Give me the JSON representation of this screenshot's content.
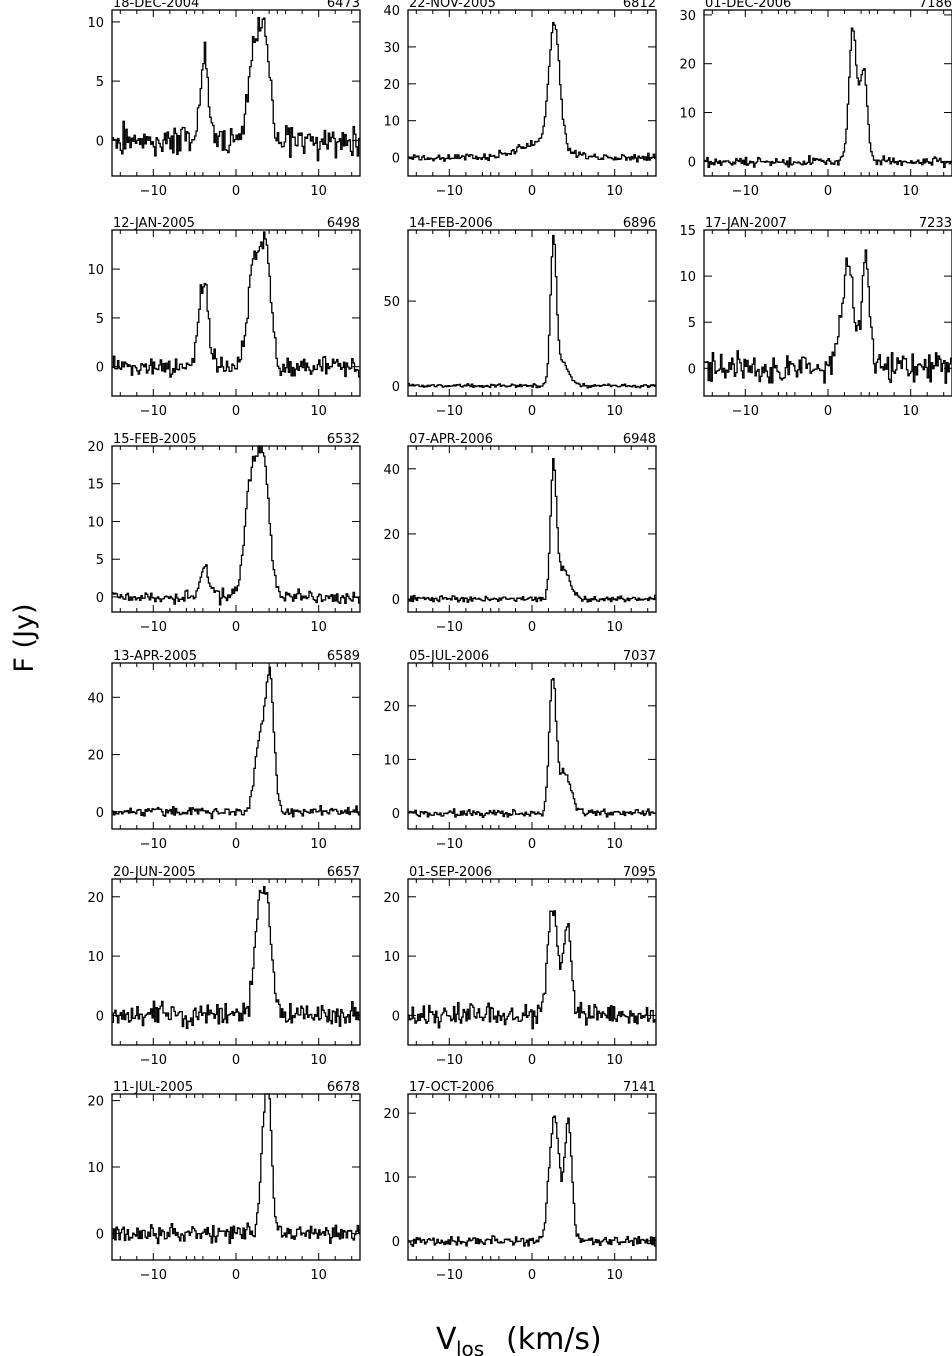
{
  "figure": {
    "ylabel": "F (Jy)",
    "xlabel_main": "V",
    "xlabel_sub": "los",
    "xlabel_unit": "(km/s)"
  },
  "chart_data": [
    {
      "type": "line",
      "date": "18-DEC-2004",
      "id": "6473",
      "xlim": [
        -15,
        15
      ],
      "ylim": [
        -3,
        11
      ],
      "xticks": [
        -10,
        0,
        10
      ],
      "yticks": [
        0,
        5,
        10
      ],
      "noise": 1.0,
      "components": [
        {
          "center": -3.8,
          "amp": 7.0,
          "width": 0.5
        },
        {
          "center": 2.3,
          "amp": 7.2,
          "width": 0.8
        },
        {
          "center": 3.5,
          "amp": 7.6,
          "width": 0.6
        }
      ],
      "peak": 10.7
    },
    {
      "type": "line",
      "date": "12-JAN-2005",
      "id": "6498",
      "xlim": [
        -15,
        15
      ],
      "ylim": [
        -3,
        14
      ],
      "xticks": [
        -10,
        0,
        10
      ],
      "yticks": [
        0,
        5,
        10
      ],
      "noise": 0.8,
      "components": [
        {
          "center": -3.9,
          "amp": 8.8,
          "width": 0.55
        },
        {
          "center": 2.2,
          "amp": 10.5,
          "width": 0.75
        },
        {
          "center": 3.6,
          "amp": 11.0,
          "width": 0.6
        }
      ],
      "peak": 13.5
    },
    {
      "type": "line",
      "date": "15-FEB-2005",
      "id": "6532",
      "xlim": [
        -15,
        15
      ],
      "ylim": [
        -2,
        20
      ],
      "xticks": [
        -10,
        0,
        10
      ],
      "yticks": [
        0,
        5,
        10,
        15,
        20
      ],
      "noise": 0.7,
      "components": [
        {
          "center": -3.8,
          "amp": 4.0,
          "width": 0.5
        },
        {
          "center": 1.9,
          "amp": 15.5,
          "width": 0.8
        },
        {
          "center": 3.4,
          "amp": 16.0,
          "width": 0.7
        }
      ],
      "peak": 19.0
    },
    {
      "type": "line",
      "date": "13-APR-2005",
      "id": "6589",
      "xlim": [
        -15,
        15
      ],
      "ylim": [
        -6,
        52
      ],
      "xticks": [
        -10,
        0,
        10
      ],
      "yticks": [
        0,
        20,
        40
      ],
      "noise": 1.4,
      "components": [
        {
          "center": 2.9,
          "amp": 25.0,
          "width": 0.6
        },
        {
          "center": 4.1,
          "amp": 46.0,
          "width": 0.5
        }
      ],
      "peak": 50.0
    },
    {
      "type": "line",
      "date": "20-JUN-2005",
      "id": "6657",
      "xlim": [
        -15,
        15
      ],
      "ylim": [
        -5,
        23
      ],
      "xticks": [
        -10,
        0,
        10
      ],
      "yticks": [
        0,
        10,
        20
      ],
      "noise": 1.5,
      "components": [
        {
          "center": 3.0,
          "amp": 19.5,
          "width": 0.7
        },
        {
          "center": 4.0,
          "amp": 10.0,
          "width": 0.5
        }
      ],
      "peak": 22.0
    },
    {
      "type": "line",
      "date": "11-JUL-2005",
      "id": "6678",
      "xlim": [
        -15,
        15
      ],
      "ylim": [
        -4,
        21
      ],
      "xticks": [
        -10,
        0,
        10
      ],
      "yticks": [
        0,
        10,
        20
      ],
      "noise": 1.0,
      "components": [
        {
          "center": 3.4,
          "amp": 14.0,
          "width": 0.45
        },
        {
          "center": 4.0,
          "amp": 16.0,
          "width": 0.4
        }
      ],
      "peak": 20.0
    },
    {
      "type": "line",
      "date": "22-NOV-2005",
      "id": "6812",
      "xlim": [
        -15,
        15
      ],
      "ylim": [
        -5,
        40
      ],
      "xticks": [
        -10,
        0,
        10
      ],
      "yticks": [
        0,
        10,
        20,
        30,
        40
      ],
      "noise": 0.8,
      "components": [
        {
          "center": 2.7,
          "amp": 33.0,
          "width": 0.65
        },
        {
          "center": 1.0,
          "amp": 4.0,
          "width": 2.5
        }
      ],
      "peak": 38.5
    },
    {
      "type": "line",
      "date": "14-FEB-2006",
      "id": "6896",
      "xlim": [
        -15,
        15
      ],
      "ylim": [
        -6,
        92
      ],
      "xticks": [
        -10,
        0,
        10
      ],
      "yticks": [
        0,
        50
      ],
      "noise": 0.8,
      "components": [
        {
          "center": 2.6,
          "amp": 82.0,
          "width": 0.35
        },
        {
          "center": 3.6,
          "amp": 14.0,
          "width": 0.8
        }
      ],
      "peak": 88.0
    },
    {
      "type": "line",
      "date": "07-APR-2006",
      "id": "6948",
      "xlim": [
        -15,
        15
      ],
      "ylim": [
        -4,
        47
      ],
      "xticks": [
        -10,
        0,
        10
      ],
      "yticks": [
        0,
        20,
        40
      ],
      "noise": 0.7,
      "components": [
        {
          "center": 2.6,
          "amp": 40.0,
          "width": 0.35
        },
        {
          "center": 3.8,
          "amp": 9.0,
          "width": 0.8
        }
      ],
      "peak": 45.5
    },
    {
      "type": "line",
      "date": "05-JUL-2006",
      "id": "7037",
      "xlim": [
        -15,
        15
      ],
      "ylim": [
        -3,
        28
      ],
      "xticks": [
        -10,
        0,
        10
      ],
      "yticks": [
        0,
        10,
        20
      ],
      "noise": 0.6,
      "components": [
        {
          "center": 2.5,
          "amp": 24.0,
          "width": 0.4
        },
        {
          "center": 3.9,
          "amp": 7.5,
          "width": 0.8
        }
      ],
      "peak": 27.5
    },
    {
      "type": "line",
      "date": "01-SEP-2006",
      "id": "7095",
      "xlim": [
        -15,
        15
      ],
      "ylim": [
        -5,
        23
      ],
      "xticks": [
        -10,
        0,
        10
      ],
      "yticks": [
        0,
        10,
        20
      ],
      "noise": 1.3,
      "components": [
        {
          "center": 2.5,
          "amp": 18.0,
          "width": 0.6
        },
        {
          "center": 4.3,
          "amp": 15.5,
          "width": 0.45
        }
      ],
      "peak": 21.5
    },
    {
      "type": "line",
      "date": "17-OCT-2006",
      "id": "7141",
      "xlim": [
        -15,
        15
      ],
      "ylim": [
        -3,
        23
      ],
      "xticks": [
        -10,
        0,
        10
      ],
      "yticks": [
        0,
        10,
        20
      ],
      "noise": 0.6,
      "components": [
        {
          "center": 2.7,
          "amp": 19.5,
          "width": 0.6
        },
        {
          "center": 4.4,
          "amp": 18.5,
          "width": 0.45
        }
      ],
      "peak": 21.5
    },
    {
      "type": "line",
      "date": "01-DEC-2006",
      "id": "7186",
      "xlim": [
        -15,
        15
      ],
      "ylim": [
        -3,
        31
      ],
      "xticks": [
        -10,
        0,
        10
      ],
      "yticks": [
        0,
        10,
        20,
        30
      ],
      "noise": 0.7,
      "components": [
        {
          "center": 3.0,
          "amp": 27.0,
          "width": 0.45
        },
        {
          "center": 4.3,
          "amp": 18.5,
          "width": 0.45
        }
      ],
      "peak": 30.0
    },
    {
      "type": "line",
      "date": "17-JAN-2007",
      "id": "7233",
      "xlim": [
        -15,
        15
      ],
      "ylim": [
        -3,
        15
      ],
      "xticks": [
        -10,
        0,
        10
      ],
      "yticks": [
        0,
        5,
        10,
        15
      ],
      "noise": 1.2,
      "components": [
        {
          "center": 2.4,
          "amp": 11.5,
          "width": 0.7
        },
        {
          "center": 4.6,
          "amp": 12.0,
          "width": 0.45
        }
      ],
      "peak": 14.5
    }
  ]
}
